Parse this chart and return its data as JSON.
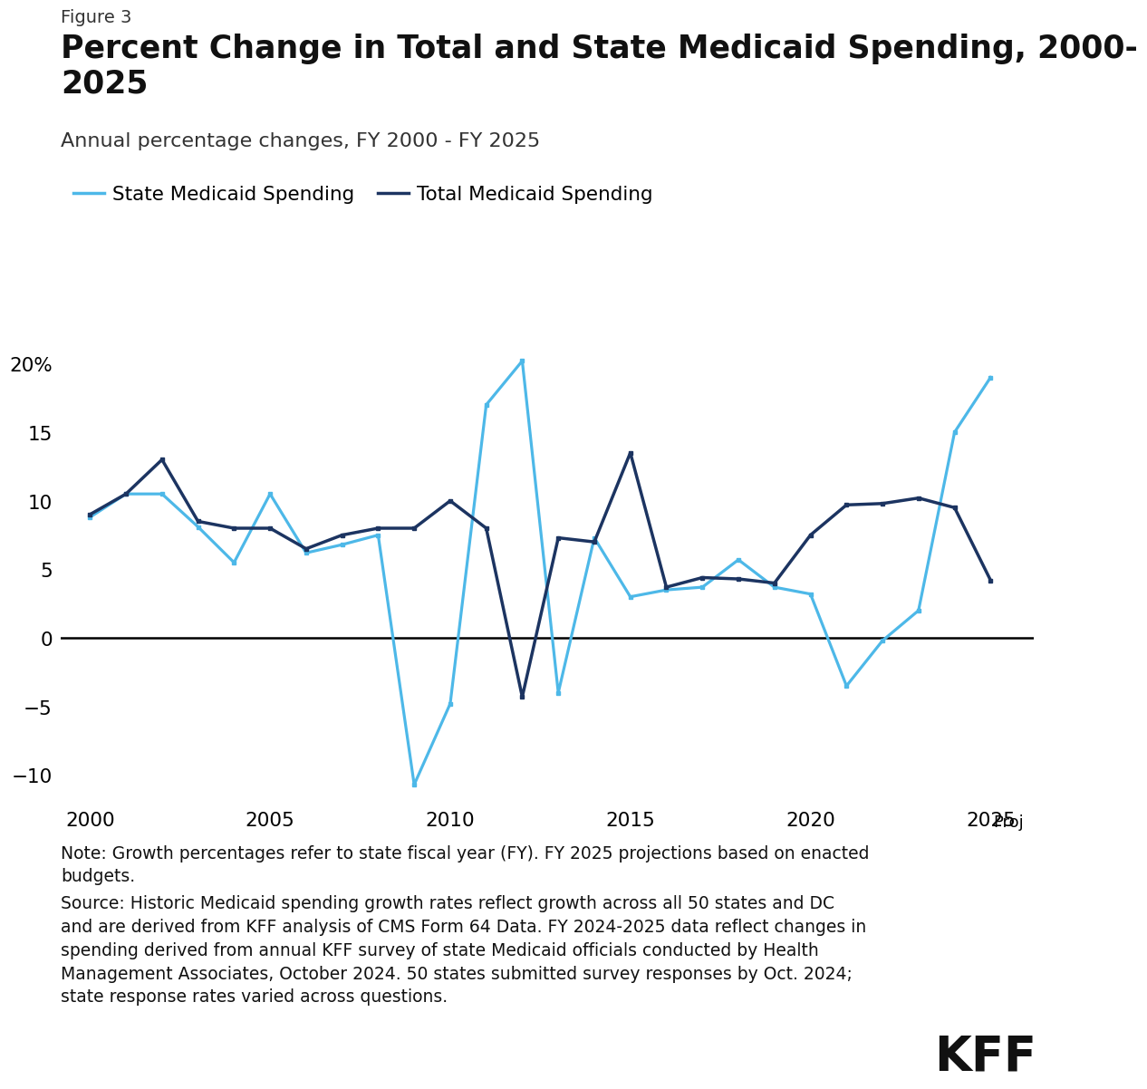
{
  "figure_label": "Figure 3",
  "title": "Percent Change in Total and State Medicaid Spending, 2000-\n2025",
  "subtitle": "Annual percentage changes, FY 2000 - FY 2025",
  "legend_state": "State Medicaid Spending",
  "legend_total": "Total Medicaid Spending",
  "state_color": "#4db8e8",
  "total_color": "#1c3461",
  "years": [
    2000,
    2001,
    2002,
    2003,
    2004,
    2005,
    2006,
    2007,
    2008,
    2009,
    2010,
    2011,
    2012,
    2013,
    2014,
    2015,
    2016,
    2017,
    2018,
    2019,
    2020,
    2021,
    2022,
    2023,
    2024,
    2025
  ],
  "state_spending": [
    8.8,
    10.5,
    10.5,
    8.1,
    5.5,
    10.5,
    6.2,
    6.8,
    7.5,
    -10.7,
    -4.8,
    17.0,
    20.2,
    -4.0,
    7.3,
    3.0,
    3.5,
    3.7,
    5.7,
    3.7,
    3.2,
    -3.5,
    -0.2,
    2.0,
    15.0,
    19.0
  ],
  "total_spending": [
    9.0,
    10.5,
    13.0,
    8.5,
    8.0,
    8.0,
    6.5,
    7.5,
    8.0,
    8.0,
    10.0,
    8.0,
    -4.3,
    7.3,
    7.0,
    13.5,
    3.7,
    4.4,
    4.3,
    4.0,
    7.5,
    9.7,
    9.8,
    10.2,
    9.5,
    4.2
  ],
  "ylim": [
    -12,
    22
  ],
  "yticks": [
    -10,
    -5,
    0,
    5,
    10,
    15,
    20
  ],
  "xtick_labels": [
    "2000",
    "2005",
    "2010",
    "2015",
    "2020",
    "2025"
  ],
  "xtick_positions": [
    2000,
    2005,
    2010,
    2015,
    2020,
    2025
  ],
  "proj_label": "Proj",
  "note_text": "Note: Growth percentages refer to state fiscal year (FY). FY 2025 projections based on enacted\nbudgets.",
  "source_text": "Source: Historic Medicaid spending growth rates reflect growth across all 50 states and DC\nand are derived from KFF analysis of CMS Form 64 Data. FY 2024-2025 data reflect changes in\nspending derived from annual KFF survey of state Medicaid officials conducted by Health\nManagement Associates, October 2024. 50 states submitted survey responses by Oct. 2024;\nstate response rates varied across questions.",
  "kff_text": "KFF",
  "background_color": "#ffffff",
  "state_lw": 2.3,
  "total_lw": 2.5
}
